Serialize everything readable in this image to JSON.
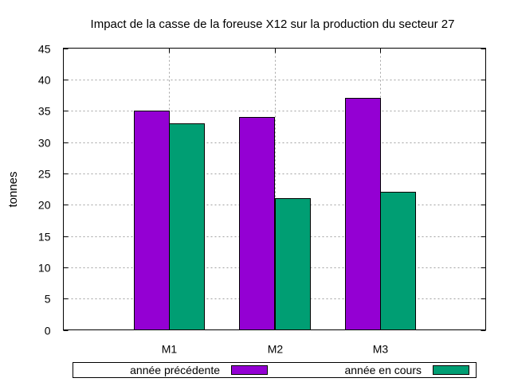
{
  "chart_data": {
    "type": "bar",
    "title": "Impact de la casse de la foreuse X12 sur la production du secteur 27",
    "ylabel": "tonnes",
    "xlabel": "",
    "categories": [
      "M1",
      "M2",
      "M3"
    ],
    "series": [
      {
        "name": "année précédente",
        "values": [
          35,
          34,
          37
        ],
        "color": "#9400d3"
      },
      {
        "name": "année en cours",
        "values": [
          33,
          21,
          22
        ],
        "color": "#009e73"
      }
    ],
    "ylim": [
      0,
      45
    ],
    "yticks": [
      0,
      5,
      10,
      15,
      20,
      25,
      30,
      35,
      40,
      45
    ],
    "grid": true,
    "legend_position": "bottom"
  }
}
